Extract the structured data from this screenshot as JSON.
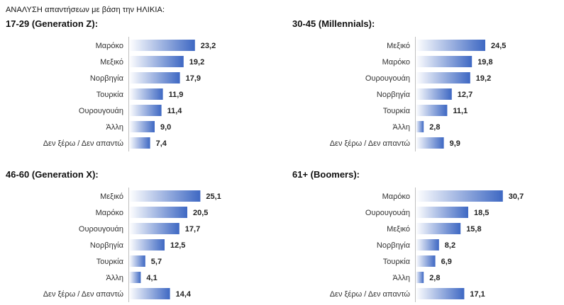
{
  "title": "ΑΝΑΛΥΣΗ απαντήσεων  με βάση την ΗΛΙΚΙΑ:",
  "colors": {
    "bar_start": "#ffffff",
    "bar_end": "#3e68c3"
  },
  "chart_data": [
    {
      "type": "bar",
      "orientation": "horizontal",
      "title": "17-29 (Generation Z):",
      "categories": [
        "Μαρόκο",
        "Μεξικό",
        "Νορβηγία",
        "Τουρκία",
        "Ουρουγουάη",
        "Άλλη",
        "Δεν ξέρω / Δεν απαντώ"
      ],
      "values": [
        23.2,
        19.2,
        17.9,
        11.9,
        11.4,
        9.0,
        7.4
      ],
      "value_labels": [
        "23,2",
        "19,2",
        "17,9",
        "11,9",
        "11,4",
        "9,0",
        "7,4"
      ],
      "xlim": [
        0,
        31
      ]
    },
    {
      "type": "bar",
      "orientation": "horizontal",
      "title": "30-45 (Millennials):",
      "categories": [
        "Μεξικό",
        "Μαρόκο",
        "Ουρουγουάη",
        "Νορβηγία",
        "Τουρκία",
        "Άλλη",
        "Δεν ξέρω / Δεν απαντώ"
      ],
      "values": [
        24.5,
        19.8,
        19.2,
        12.7,
        11.1,
        2.8,
        9.9
      ],
      "value_labels": [
        "24,5",
        "19,8",
        "19,2",
        "12,7",
        "11,1",
        "2,8",
        "9,9"
      ],
      "xlim": [
        0,
        31
      ]
    },
    {
      "type": "bar",
      "orientation": "horizontal",
      "title": "46-60 (Generation X):",
      "categories": [
        "Μεξικό",
        "Μαρόκο",
        "Ουρουγουάη",
        "Νορβηγία",
        "Τουρκία",
        "Άλλη",
        "Δεν ξέρω / Δεν απαντώ"
      ],
      "values": [
        25.1,
        20.5,
        17.7,
        12.5,
        5.7,
        4.1,
        14.4
      ],
      "value_labels": [
        "25,1",
        "20,5",
        "17,7",
        "12,5",
        "5,7",
        "4,1",
        "14,4"
      ],
      "xlim": [
        0,
        31
      ]
    },
    {
      "type": "bar",
      "orientation": "horizontal",
      "title": "61+ (Boomers):",
      "categories": [
        "Μαρόκο",
        "Ουρουγουάη",
        "Μεξικό",
        "Νορβηγία",
        "Τουρκία",
        "Άλλη",
        "Δεν ξέρω / Δεν απαντώ"
      ],
      "values": [
        30.7,
        18.5,
        15.8,
        8.2,
        6.9,
        2.8,
        17.1
      ],
      "value_labels": [
        "30,7",
        "18,5",
        "15,8",
        "8,2",
        "6,9",
        "2,8",
        "17,1"
      ],
      "xlim": [
        0,
        31
      ]
    }
  ]
}
